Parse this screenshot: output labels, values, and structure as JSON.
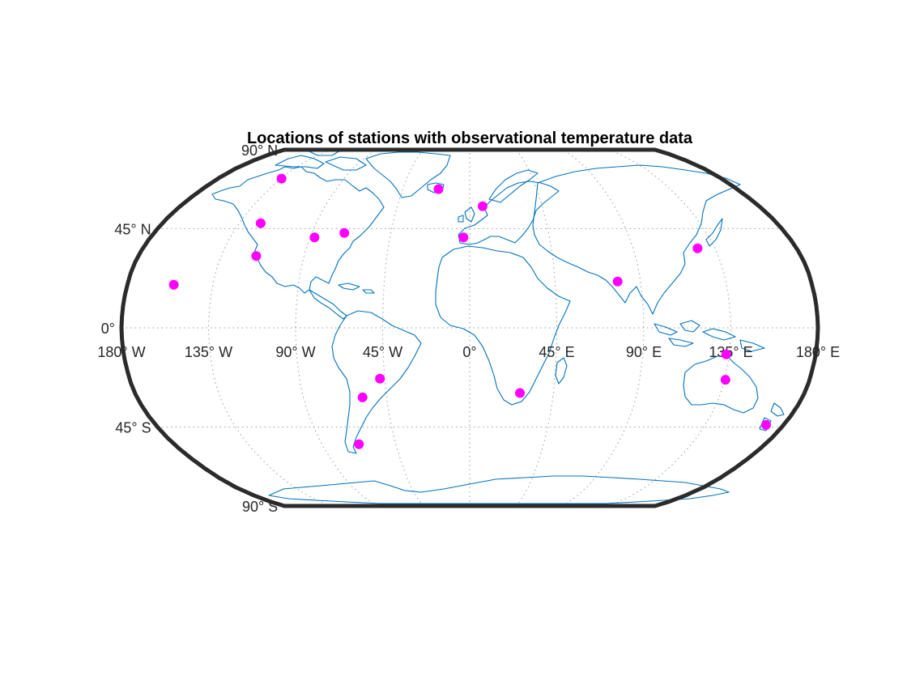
{
  "chart_data": {
    "type": "scatter",
    "map_projection": "Robinson",
    "title": "Locations of stations with observational temperature data",
    "lon_range": [
      -180,
      180
    ],
    "lat_range": [
      -90,
      90
    ],
    "grid": true,
    "meridian_labels": [
      {
        "lon": -180,
        "text": "180° W"
      },
      {
        "lon": -135,
        "text": "135° W"
      },
      {
        "lon": -90,
        "text": "90° W"
      },
      {
        "lon": -45,
        "text": "45° W"
      },
      {
        "lon": 0,
        "text": "0°"
      },
      {
        "lon": 45,
        "text": "45° E"
      },
      {
        "lon": 90,
        "text": "90° E"
      },
      {
        "lon": 135,
        "text": "135° E"
      },
      {
        "lon": 180,
        "text": "180° E"
      }
    ],
    "parallel_labels": [
      {
        "lat": 90,
        "text": "90° N"
      },
      {
        "lat": 45,
        "text": "45° N"
      },
      {
        "lat": 0,
        "text": "0°"
      },
      {
        "lat": -45,
        "text": "45° S"
      },
      {
        "lat": -90,
        "text": "90° S"
      }
    ],
    "colors": {
      "stations": "#ff00ff",
      "coastline": "#0072bd",
      "frame": "#2b2b2b",
      "grid": "#9a9a9a"
    },
    "stations": [
      {
        "lon": -155.6,
        "lat": 19.5
      },
      {
        "lon": -134.6,
        "lat": 69.5
      },
      {
        "lon": -122.5,
        "lat": 47.5
      },
      {
        "lon": -116.0,
        "lat": 32.5
      },
      {
        "lon": -87.5,
        "lat": 41.0
      },
      {
        "lon": -71.5,
        "lat": 43.0
      },
      {
        "lon": -58.0,
        "lat": -31.5
      },
      {
        "lon": -67.5,
        "lat": -53.0
      },
      {
        "lon": -47.5,
        "lat": -23.0
      },
      {
        "lon": -21.0,
        "lat": 64.0
      },
      {
        "lon": -3.5,
        "lat": 41.0
      },
      {
        "lon": 8.0,
        "lat": 55.5
      },
      {
        "lon": 27.0,
        "lat": -29.5
      },
      {
        "lon": 78.0,
        "lat": 21.0
      },
      {
        "lon": 125.5,
        "lat": 36.0
      },
      {
        "lon": 133.5,
        "lat": -12.0
      },
      {
        "lon": 135.5,
        "lat": -23.5
      },
      {
        "lon": 170.0,
        "lat": -44.0
      }
    ]
  }
}
